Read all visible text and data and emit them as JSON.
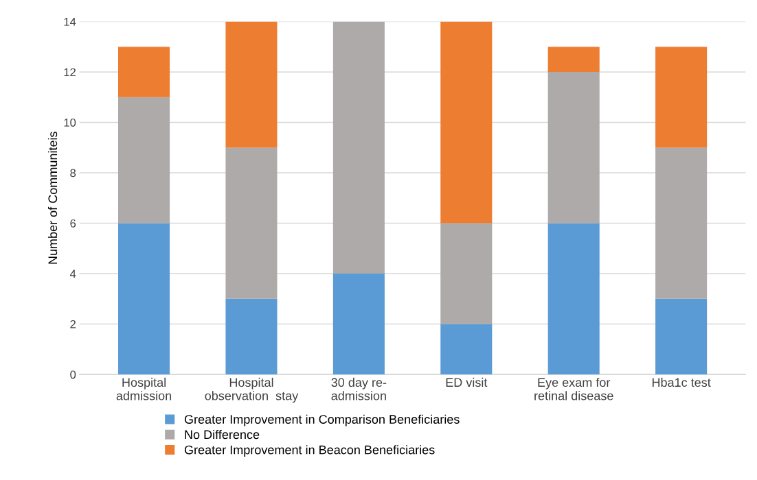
{
  "chart_data": {
    "type": "bar",
    "stacked": true,
    "ylabel": "Number of Communiteis",
    "categories": [
      "Hospital\nadmission",
      "Hospital\nobservation  stay",
      "30 day re-\nadmission",
      "ED visit",
      "Eye exam for\nretinal disease",
      "Hba1c test"
    ],
    "series": [
      {
        "name": "Greater Improvement in Comparison Beneficiaries",
        "color": "#5b9bd5",
        "values": [
          6,
          3,
          4,
          2,
          6,
          3
        ]
      },
      {
        "name": "No Difference",
        "color": "#aeaaaa",
        "values": [
          5,
          6,
          10,
          4,
          6,
          6
        ]
      },
      {
        "name": "Greater Improvement in Beacon Beneficiaries",
        "color": "#ed7d31",
        "values": [
          2,
          5,
          0,
          8,
          1,
          4
        ]
      }
    ],
    "ylim": [
      0,
      14
    ],
    "yticks": [
      0,
      2,
      4,
      6,
      8,
      10,
      12,
      14
    ],
    "grid": "y",
    "legend": "bottom"
  }
}
